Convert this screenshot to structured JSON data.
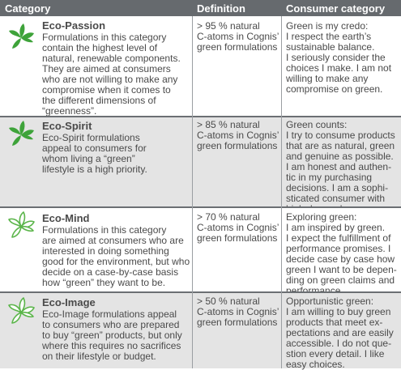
{
  "header": {
    "category": "Category",
    "definition": "Definition",
    "consumer_category": "Consumer category"
  },
  "colors": {
    "header_bg": "#666a6e",
    "row_alt_bg": "#e4e4e4",
    "leaf_solid": "#3ea33a",
    "leaf_outline": "#5bb54a"
  },
  "rows": [
    {
      "icon": "solid-green-leaf-icon",
      "name": "Eco-Passion",
      "description": [
        "Formulations in this category",
        "contain the highest level of",
        "natural, renewable components.",
        "They are aimed at consumers",
        "who are not willing to make any",
        "compromise when it comes to",
        "the different dimensions of",
        "“greenness”."
      ],
      "definition": [
        "> 95 % natural",
        "C-atoms in Cognis’",
        "green formulations"
      ],
      "consumer": [
        "Green is my credo:",
        "I respect the earth’s",
        "sustainable balance.",
        "I seriously consider the",
        "choices I make. I am not",
        "willing to make any",
        "compromise on green."
      ]
    },
    {
      "icon": "solid-green-leaf-icon",
      "name": "Eco-Spirit",
      "description": [
        "Eco-Spirit formulations",
        "appeal to consumers for",
        "whom living a “green”",
        "lifestyle is a high priority."
      ],
      "definition": [
        "> 85 % natural",
        "C-atoms in Cognis’",
        "green formulations"
      ],
      "consumer": [
        "Green counts:",
        "I try to consume products",
        "that are as natural, green",
        "and genuine as possible.",
        "I am honest and authen-",
        "tic in my purchasing",
        "decisions. I am a sophi-",
        "sticated consumer with",
        "high demands."
      ]
    },
    {
      "icon": "outline-green-leaf-icon",
      "name": "Eco-Mind",
      "description": [
        "Formulations in this category",
        "are aimed at consumers who are",
        "interested in doing something",
        "good for the environment, but who",
        "decide on a case-by-case basis",
        "how “green” they want to be."
      ],
      "definition": [
        "> 70 % natural",
        "C-atoms in Cognis’",
        "green formulations"
      ],
      "consumer": [
        "Exploring green:",
        "I am inspired by green.",
        "I expect the fulfillment of",
        "performance promises. I",
        "decide case by case how",
        "green I want to be depen-",
        "ding on green claims and",
        "performance."
      ]
    },
    {
      "icon": "outline-green-leaf-icon",
      "name": "Eco-Image",
      "description": [
        "Eco-Image formulations appeal",
        "to consumers who are prepared",
        "to buy “green” products, but only",
        "where this requires no sacrifices",
        "on their lifestyle or budget."
      ],
      "definition": [
        "> 50 % natural",
        "C-atoms in Cognis’",
        "green formulations"
      ],
      "consumer": [
        "Opportunistic green:",
        "I am willing to buy green",
        "products that meet  ex-",
        "pectations and are easily",
        "accessible. I do not que-",
        "stion every detail. I like",
        "easy choices."
      ]
    }
  ]
}
